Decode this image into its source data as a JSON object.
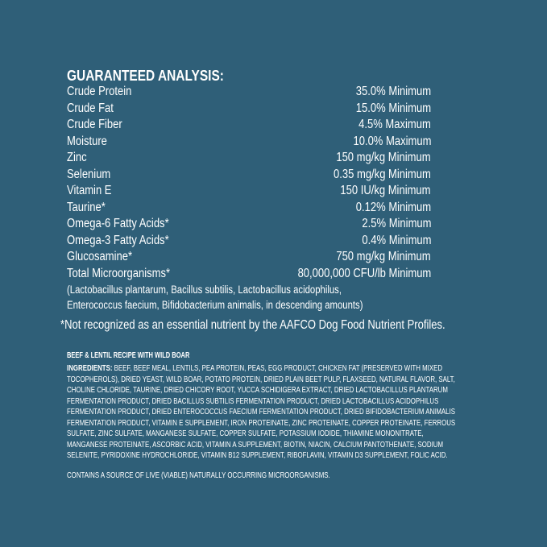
{
  "guaranteed_analysis": {
    "title": "GUARANTEED ANALYSIS:",
    "rows": [
      {
        "label": "Crude Protein",
        "value": "35.0% Minimum"
      },
      {
        "label": "Crude Fat",
        "value": "15.0% Minimum"
      },
      {
        "label": "Crude Fiber",
        "value": "4.5% Maximum"
      },
      {
        "label": "Moisture",
        "value": "10.0% Maximum"
      },
      {
        "label": "Zinc",
        "value": "150 mg/kg Minimum"
      },
      {
        "label": "Selenium",
        "value": "0.35 mg/kg Minimum"
      },
      {
        "label": "Vitamin E",
        "value": "150 IU/kg Minimum"
      },
      {
        "label": "Taurine*",
        "value": "0.12% Minimum"
      },
      {
        "label": "Omega-6 Fatty Acids*",
        "value": "2.5% Minimum"
      },
      {
        "label": "Omega-3 Fatty Acids*",
        "value": "0.4% Minimum"
      },
      {
        "label": "Glucosamine*",
        "value": "750 mg/kg Minimum"
      },
      {
        "label": "Total Microorganisms*",
        "value": "80,000,000 CFU/lb Minimum"
      }
    ],
    "microorganisms_note": [
      "(Lactobacillus plantarum, Bacillus subtilis, Lactobacillus acidophilus,",
      "Enterococcus faecium, Bifidobacterium animalis, in descending amounts)"
    ],
    "footnote": "*Not recognized as an essential nutrient by the AAFCO Dog Food Nutrient Profiles."
  },
  "ingredients": {
    "recipe_name": "BEEF & LENTIL RECIPE WITH WILD BOAR",
    "label": "INGREDIENTS:",
    "lines": [
      " BEEF, BEEF MEAL, LENTILS, PEA PROTEIN, PEAS, EGG PRODUCT, CHICKEN FAT (PRESERVED WITH MIXED",
      "TOCOPHEROLS), DRIED YEAST, WILD BOAR, POTATO PROTEIN, DRIED PLAIN BEET PULP, FLAXSEED, NATURAL FLAVOR, SALT,",
      "CHOLINE CHLORIDE, TAURINE, DRIED CHICORY ROOT, YUCCA SCHIDIGERA EXTRACT, DRIED LACTOBACILLUS PLANTARUM",
      "FERMENTATION PRODUCT, DRIED BACILLUS SUBTILIS FERMENTATION PRODUCT, DRIED LACTOBACILLUS ACIDOPHILUS",
      "FERMENTATION PRODUCT, DRIED ENTEROCOCCUS FAECIUM FERMENTATION PRODUCT, DRIED BIFIDOBACTERIUM ANIMALIS",
      "FERMENTATION PRODUCT, VITAMIN E SUPPLEMENT, IRON PROTEINATE, ZINC PROTEINATE, COPPER PROTEINATE, FERROUS",
      "SULFATE, ZINC SULFATE, MANGANESE SULFATE, COPPER SULFATE, POTASSIUM IODIDE, THIAMINE MONONITRATE,",
      "MANGANESE PROTEINATE, ASCORBIC ACID, VITAMIN A SUPPLEMENT, BIOTIN, NIACIN, CALCIUM PANTOTHENATE, SODIUM",
      "SELENITE, PYRIDOXINE HYDROCHLORIDE, VITAMIN B12 SUPPLEMENT, RIBOFLAVIN, VITAMIN D3 SUPPLEMENT, FOLIC ACID."
    ],
    "contains": "CONTAINS A SOURCE OF LIVE (VIABLE) NATURALLY OCCURRING MICROORGANISMS."
  },
  "colors": {
    "background": "#2f5f78",
    "text": "#ffffff"
  }
}
